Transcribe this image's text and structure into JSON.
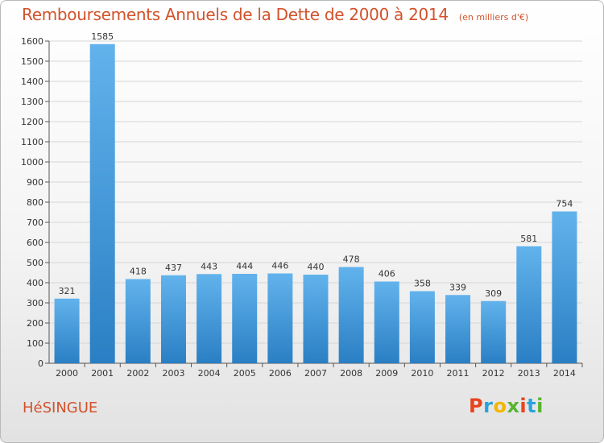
{
  "title": "Remboursements Annuels de la Dette de 2000 à 2014",
  "unit_note": "(en milliers d'€)",
  "commune": "HéSINGUE",
  "brand": {
    "letters": [
      "P",
      "r",
      "o",
      "x",
      "i",
      "t",
      "i"
    ],
    "colors": [
      "#e8431e",
      "#27a3dd",
      "#f3b600",
      "#58b431",
      "#e8431e",
      "#27a3dd",
      "#58b431"
    ]
  },
  "colors": {
    "bar_light": "#62b3ec",
    "bar_dark": "#2a7fc4",
    "title": "#d2522a"
  },
  "chart_data": {
    "type": "bar",
    "categories": [
      "2000",
      "2001",
      "2002",
      "2003",
      "2004",
      "2005",
      "2006",
      "2007",
      "2008",
      "2009",
      "2010",
      "2011",
      "2012",
      "2013",
      "2014"
    ],
    "values": [
      321,
      1585,
      418,
      437,
      443,
      444,
      446,
      440,
      478,
      406,
      358,
      339,
      309,
      581,
      754
    ],
    "ylim": [
      0,
      1600
    ],
    "yticks": [
      0,
      100,
      200,
      300,
      400,
      500,
      600,
      700,
      800,
      900,
      1000,
      1100,
      1200,
      1300,
      1400,
      1500,
      1600
    ],
    "grid": true
  }
}
